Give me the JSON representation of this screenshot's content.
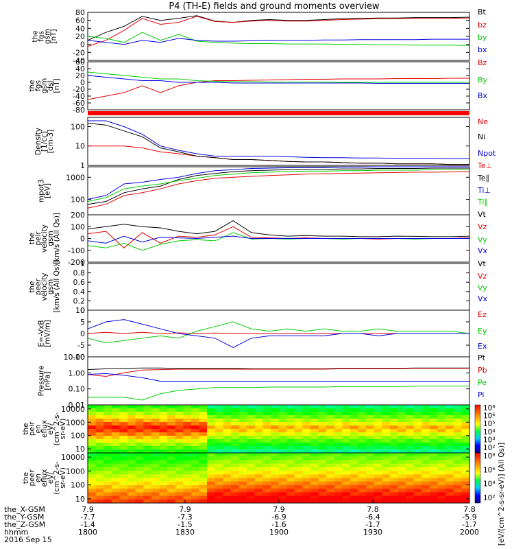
{
  "title": "P4 (TH-E) fields and ground moments overview",
  "colors": {
    "black": "#000000",
    "red": "#e00000",
    "green": "#00cc00",
    "blue": "#0000dd"
  },
  "chart_data": [
    {
      "type": "line",
      "panel": "fgs_gsm",
      "ylabel": [
        "the",
        "fgs",
        "gsm",
        "[nT]"
      ],
      "ylim": [
        -40,
        80
      ],
      "yticks": [
        -40,
        -20,
        0,
        20,
        40,
        60,
        80
      ],
      "ylog": false,
      "series": [
        {
          "name": "Bt",
          "color": "#000000",
          "values": [
            10,
            30,
            45,
            70,
            60,
            65,
            72,
            58,
            55,
            60,
            62,
            60,
            60,
            62,
            64,
            65,
            66,
            66,
            67,
            67,
            67,
            68
          ]
        },
        {
          "name": "bz",
          "color": "#e00000",
          "values": [
            -5,
            10,
            35,
            65,
            50,
            55,
            70,
            57,
            55,
            58,
            60,
            58,
            58,
            60,
            62,
            63,
            64,
            64,
            65,
            65,
            65,
            66
          ]
        },
        {
          "name": "by",
          "color": "#00cc00",
          "values": [
            20,
            15,
            5,
            30,
            10,
            25,
            8,
            5,
            3,
            2,
            2,
            1,
            1,
            1,
            0,
            0,
            -1,
            -1,
            -2,
            -2,
            -2,
            -3
          ]
        },
        {
          "name": "bx",
          "color": "#0000dd",
          "values": [
            10,
            5,
            0,
            10,
            5,
            15,
            10,
            8,
            8,
            9,
            10,
            10,
            10,
            11,
            11,
            12,
            12,
            12,
            12,
            13,
            13,
            13
          ]
        }
      ]
    },
    {
      "type": "line",
      "panel": "fgs_dsl",
      "ylabel": [
        "the",
        "fgs",
        "gsm",
        "dsl",
        "[nT]"
      ],
      "ylim": [
        -80,
        60
      ],
      "yticks": [
        -80,
        -60,
        -40,
        -20,
        0,
        20,
        40,
        60
      ],
      "ylog": false,
      "series": [
        {
          "name": "Bz",
          "color": "#e00000",
          "values": [
            -50,
            -40,
            -30,
            -10,
            -30,
            -10,
            0,
            5,
            5,
            6,
            7,
            8,
            9,
            9,
            10,
            10,
            10,
            11,
            11,
            11,
            12,
            12
          ]
        },
        {
          "name": "By",
          "color": "#00cc00",
          "values": [
            30,
            25,
            20,
            15,
            10,
            10,
            5,
            3,
            2,
            2,
            1,
            1,
            1,
            1,
            0,
            0,
            0,
            0,
            0,
            0,
            0,
            0
          ]
        },
        {
          "name": "Bx",
          "color": "#0000dd",
          "values": [
            20,
            15,
            10,
            5,
            5,
            0,
            0,
            0,
            -2,
            -2,
            -2,
            -2,
            -2,
            -2,
            -2,
            -2,
            -3,
            -3,
            -3,
            -3,
            -3,
            -3
          ]
        }
      ]
    },
    {
      "type": "line",
      "panel": "density",
      "ylabel": [
        "Density",
        "[1/cc]",
        "[cm-3]"
      ],
      "ylim": [
        1,
        300
      ],
      "yticks": [
        1,
        10,
        100
      ],
      "ylog": true,
      "series": [
        {
          "name": "Ne",
          "color": "#e00000",
          "values": [
            10,
            10,
            10,
            8,
            5,
            4,
            3,
            2.5,
            2,
            2,
            1.8,
            1.6,
            1.5,
            1.5,
            1.4,
            1.3,
            1.3,
            1.2,
            1.2,
            1.2,
            1.1,
            1.1
          ]
        },
        {
          "name": "Ni",
          "color": "#000000",
          "values": [
            150,
            120,
            60,
            30,
            8,
            5,
            3,
            2.5,
            2,
            2,
            1.8,
            1.6,
            1.5,
            1.5,
            1.4,
            1.3,
            1.3,
            1.2,
            1.2,
            1.2,
            1.1,
            1.1
          ]
        },
        {
          "name": "Npot",
          "color": "#0000dd",
          "values": [
            200,
            200,
            100,
            40,
            10,
            6,
            4,
            3,
            3,
            3,
            3,
            2.8,
            2.6,
            2.5,
            2.5,
            2.4,
            2.4,
            2.3,
            2.3,
            2.3,
            2.2,
            2.2
          ]
        }
      ]
    },
    {
      "type": "line",
      "panel": "temperature",
      "ylabel": [
        "mpot3",
        "[eV]"
      ],
      "ylim": [
        20,
        3000
      ],
      "yticks": [
        100,
        1000
      ],
      "ylog": true,
      "series": [
        {
          "name": "Te⊥",
          "color": "#e00000",
          "values": [
            40,
            60,
            150,
            200,
            300,
            500,
            700,
            900,
            1000,
            1100,
            1200,
            1300,
            1400,
            1450,
            1500,
            1550,
            1600,
            1650,
            1700,
            1700,
            1750,
            1800
          ]
        },
        {
          "name": "Te∥",
          "color": "#000000",
          "values": [
            60,
            80,
            200,
            300,
            400,
            800,
            1200,
            1500,
            1800,
            2000,
            2100,
            2200,
            2300,
            2300,
            2400,
            2400,
            2500,
            2500,
            2500,
            2600,
            2600,
            2600
          ]
        },
        {
          "name": "Ti⊥",
          "color": "#0000dd",
          "values": [
            100,
            150,
            500,
            600,
            800,
            1000,
            1500,
            2000,
            2200,
            2500,
            2600,
            2700,
            2800,
            2800,
            2900,
            2900,
            3000,
            3000,
            3000,
            3000,
            3000,
            3000
          ]
        },
        {
          "name": "Ti∥",
          "color": "#00cc00",
          "values": [
            80,
            120,
            300,
            400,
            500,
            700,
            900,
            1200,
            1400,
            1600,
            1700,
            1800,
            1900,
            1900,
            2000,
            2000,
            2100,
            2100,
            2100,
            2200,
            2200,
            2200
          ]
        }
      ]
    },
    {
      "type": "line",
      "panel": "peir_velocity",
      "ylabel": [
        "the",
        "peir",
        "velocity",
        "gsm",
        "[km/s (All Qs)]"
      ],
      "ylim": [
        -200,
        200
      ],
      "yticks": [
        -200,
        -100,
        0,
        100,
        200
      ],
      "ylog": false,
      "series": [
        {
          "name": "Vt",
          "color": "#000000",
          "values": [
            80,
            100,
            120,
            100,
            90,
            60,
            40,
            60,
            150,
            50,
            30,
            20,
            25,
            20,
            20,
            15,
            15,
            20,
            18,
            15,
            15,
            20
          ]
        },
        {
          "name": "Vz",
          "color": "#e00000",
          "values": [
            40,
            60,
            -80,
            50,
            -40,
            20,
            10,
            30,
            100,
            10,
            5,
            0,
            5,
            0,
            0,
            0,
            -5,
            0,
            0,
            0,
            0,
            5
          ]
        },
        {
          "name": "Vy",
          "color": "#00cc00",
          "values": [
            -60,
            -80,
            -40,
            -100,
            -50,
            -20,
            -10,
            -20,
            50,
            -5,
            0,
            -5,
            0,
            0,
            -5,
            0,
            0,
            0,
            -5,
            0,
            0,
            0
          ]
        },
        {
          "name": "Vx",
          "color": "#0000dd",
          "values": [
            -20,
            -40,
            20,
            -30,
            10,
            5,
            0,
            10,
            20,
            0,
            0,
            0,
            0,
            0,
            0,
            0,
            0,
            0,
            0,
            0,
            0,
            0
          ]
        }
      ]
    },
    {
      "type": "line",
      "panel": "peer_velocity",
      "ylabel": [
        "the",
        "peer",
        "velocity",
        "gsm",
        "[km/s (All Qs)]"
      ],
      "ylim": [
        0,
        1.0
      ],
      "yticks": [
        0,
        0.2,
        0.4,
        0.6,
        0.8,
        1.0
      ],
      "ylog": false,
      "series": [
        {
          "name": "Vt",
          "color": "#000000",
          "values": []
        },
        {
          "name": "Vz",
          "color": "#e00000",
          "values": []
        },
        {
          "name": "Vy",
          "color": "#00cc00",
          "values": []
        },
        {
          "name": "Vx",
          "color": "#0000dd",
          "values": []
        }
      ]
    },
    {
      "type": "line",
      "panel": "efield",
      "ylabel": [
        "E=-VxB",
        "[mV/m]"
      ],
      "ylim": [
        -10,
        10
      ],
      "yticks": [
        -10,
        -5,
        0,
        5,
        10
      ],
      "ylog": false,
      "series": [
        {
          "name": "Ez",
          "color": "#e00000",
          "values": [
            0,
            0.5,
            0,
            0.5,
            0,
            0.3,
            0,
            0.2,
            0,
            0,
            0,
            0,
            0,
            0,
            0,
            0,
            0,
            0,
            0,
            0,
            0,
            0
          ]
        },
        {
          "name": "Ey",
          "color": "#00cc00",
          "values": [
            -2,
            -4,
            -3,
            -2,
            -1,
            -2,
            1,
            3,
            5,
            2,
            1,
            2,
            1,
            2,
            1,
            1,
            2,
            1,
            1,
            1,
            1,
            0
          ]
        },
        {
          "name": "Ex",
          "color": "#0000dd",
          "values": [
            2,
            5,
            6,
            4,
            2,
            0,
            -1,
            -2,
            -6,
            -2,
            -1,
            -1,
            -1,
            -1,
            0,
            0,
            -1,
            0,
            0,
            0,
            0,
            0
          ]
        }
      ]
    },
    {
      "type": "line",
      "panel": "pressure",
      "ylabel": [
        "Pressure",
        "[nPa]"
      ],
      "ylim": [
        0.01,
        10
      ],
      "yticks": [
        0.01,
        0.1,
        1.0,
        10.0
      ],
      "ylog": true,
      "series": [
        {
          "name": "Pt",
          "color": "#000000",
          "values": [
            1.6,
            1.8,
            1.9,
            2.0,
            2.0,
            1.9,
            1.9,
            1.9,
            1.9,
            1.8,
            1.8,
            1.8,
            1.8,
            1.8,
            1.9,
            1.9,
            1.9,
            1.9,
            2.0,
            2.0,
            2.0,
            2.0
          ]
        },
        {
          "name": "Pb",
          "color": "#e00000",
          "values": [
            0.8,
            0.6,
            1.0,
            1.5,
            1.6,
            1.7,
            1.7,
            1.7,
            1.7,
            1.7,
            1.7,
            1.7,
            1.7,
            1.7,
            1.8,
            1.8,
            1.8,
            1.8,
            1.9,
            1.9,
            1.9,
            1.9
          ]
        },
        {
          "name": "Pe",
          "color": "#00cc00",
          "values": [
            0.03,
            0.03,
            0.03,
            0.02,
            0.05,
            0.08,
            0.1,
            0.12,
            0.12,
            0.12,
            0.13,
            0.13,
            0.13,
            0.13,
            0.14,
            0.14,
            0.14,
            0.14,
            0.15,
            0.15,
            0.15,
            0.15
          ]
        },
        {
          "name": "Pi",
          "color": "#0000dd",
          "values": [
            0.8,
            0.9,
            0.7,
            0.5,
            0.3,
            0.3,
            0.3,
            0.3,
            0.3,
            0.3,
            0.3,
            0.3,
            0.3,
            0.3,
            0.3,
            0.3,
            0.3,
            0.3,
            0.3,
            0.3,
            0.3,
            0.3
          ]
        }
      ]
    },
    {
      "type": "heatmap",
      "panel": "peir_eflux",
      "ylabel": [
        "the",
        "peir",
        "en",
        "eflux",
        "eV/",
        "(cm^2-s-",
        "sr-eV)"
      ],
      "ylim": [
        5,
        20000
      ],
      "yticks": [
        10,
        100,
        1000,
        10000
      ],
      "ylog": true
    },
    {
      "type": "heatmap",
      "panel": "peer_eflux",
      "ylabel": [
        "the",
        "peer",
        "en",
        "eflux",
        "eV/",
        "(cm^2-s-",
        "sr-eV)"
      ],
      "ylim": [
        5,
        20000
      ],
      "yticks": [
        10,
        100,
        1000,
        10000
      ],
      "ylog": true
    }
  ],
  "colorbars": [
    {
      "ticks": [
        "10⁸",
        "10⁶",
        "10⁵",
        "10⁴",
        "10³",
        "10²"
      ]
    },
    {
      "ticks": [
        "10⁸",
        "10⁶",
        "10⁴",
        "10²"
      ]
    }
  ],
  "colorbar_label": "[eV/(cm^2-s-sr-eV)] (All Qs)]",
  "xaxis": {
    "rows": [
      {
        "label": "the_X-GSM",
        "values": [
          "7.9",
          "7.9",
          "7.9",
          "7.8",
          "7.8"
        ]
      },
      {
        "label": "the_Y-GSM",
        "values": [
          "-7.7",
          "-7.3",
          "-6.9",
          "-6.4",
          "-5.9"
        ]
      },
      {
        "label": "the_Z-GSM",
        "values": [
          "-1.4",
          "-1.5",
          "-1.6",
          "-1.7",
          "-1.7"
        ]
      },
      {
        "label": "hhmm",
        "values": [
          "1800",
          "1830",
          "1900",
          "1930",
          "2000"
        ]
      }
    ],
    "date": "2016 Sep 15"
  }
}
